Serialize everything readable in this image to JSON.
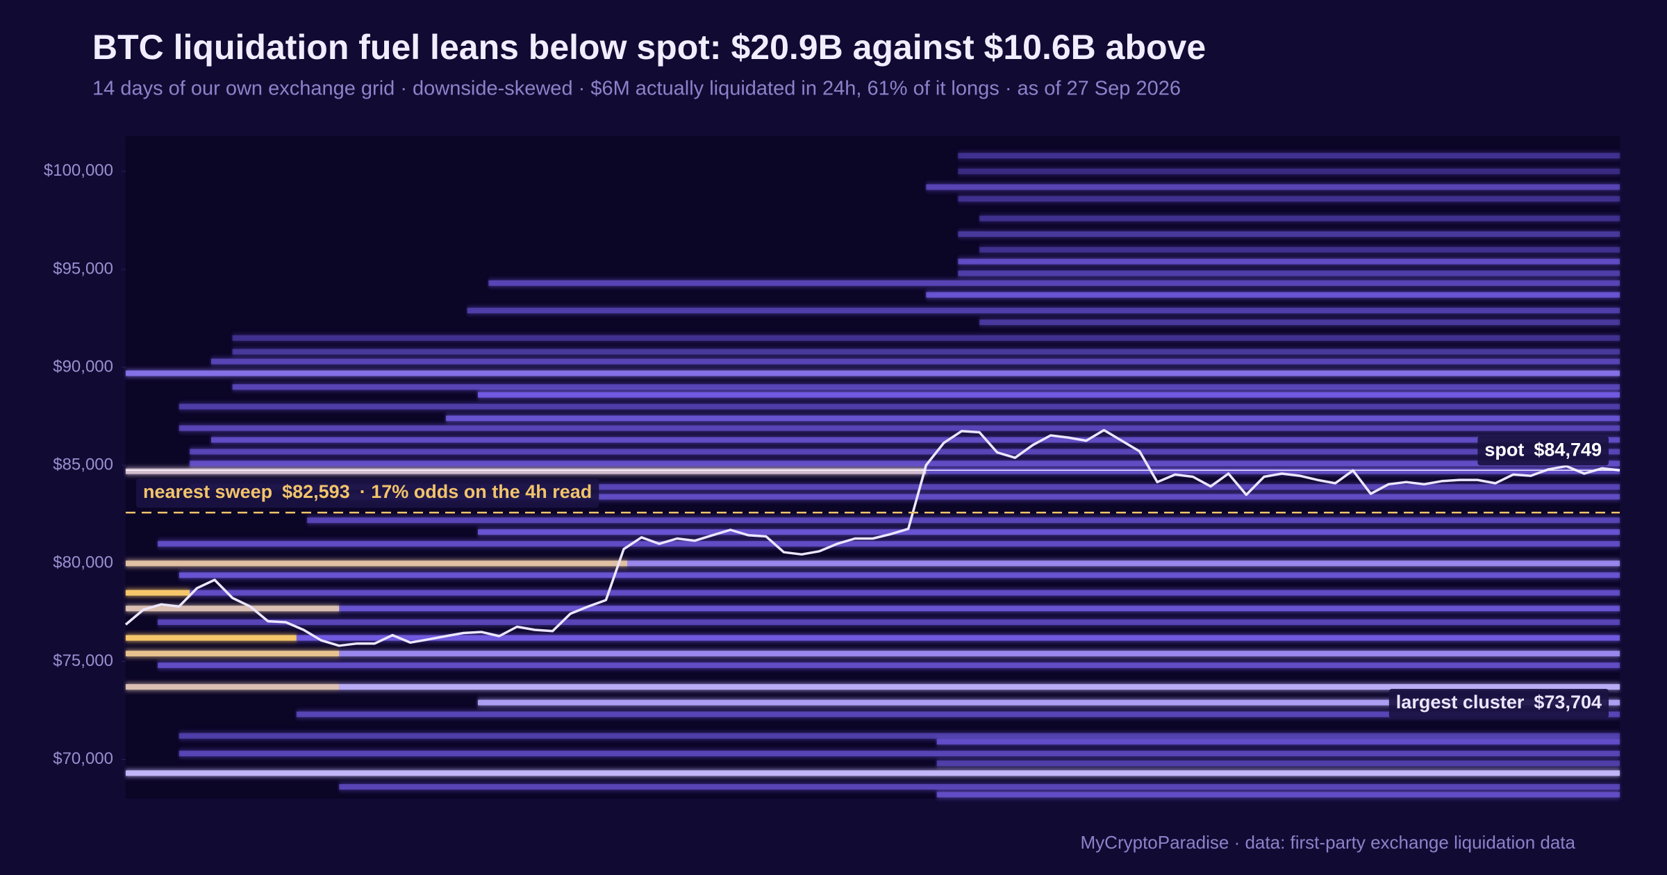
{
  "chart_data": {
    "type": "heatmap",
    "title": "BTC liquidation fuel leans below spot: $20.9B against $10.6B above",
    "subtitle": "14 days of our own exchange grid · downside-skewed · $6M actually liquidated in 24h, 61% of it longs · as of 27 Sep 2026",
    "footer": "MyCryptoParadise  ·  data: first-party exchange liquidation data",
    "xlim": [
      0,
      14
    ],
    "ylim": [
      68000,
      101800
    ],
    "yticks": [
      {
        "value": 70000,
        "label": "$70,000"
      },
      {
        "value": 75000,
        "label": "$75,000"
      },
      {
        "value": 80000,
        "label": "$80,000"
      },
      {
        "value": 85000,
        "label": "$85,000"
      },
      {
        "value": 90000,
        "label": "$90,000"
      },
      {
        "value": 95000,
        "label": "$95,000"
      },
      {
        "value": 100000,
        "label": "$100,000"
      }
    ],
    "price": {
      "color": "#ece6ff",
      "values": [
        76880,
        77640,
        77910,
        77800,
        78730,
        79160,
        78240,
        77800,
        77050,
        77000,
        76610,
        76070,
        75800,
        75910,
        75910,
        76340,
        75960,
        76120,
        76290,
        76450,
        76500,
        76290,
        76770,
        76610,
        76550,
        77430,
        77800,
        78130,
        80730,
        81330,
        81000,
        81270,
        81160,
        81440,
        81710,
        81440,
        81380,
        80570,
        80460,
        80620,
        81000,
        81270,
        81270,
        81490,
        81760,
        85010,
        86150,
        86750,
        86690,
        85660,
        85390,
        86040,
        86530,
        86420,
        86260,
        86800,
        86260,
        85720,
        84150,
        84530,
        84420,
        83930,
        84580,
        83500,
        84420,
        84580,
        84470,
        84260,
        84090,
        84740,
        83550,
        84040,
        84150,
        84040,
        84200,
        84260,
        84260,
        84090,
        84530,
        84470,
        84800,
        84960,
        84580,
        84850,
        84749
      ]
    },
    "bands": [
      {
        "price": 100800,
        "from": 7.8,
        "to": 14,
        "weight": 0.3
      },
      {
        "price": 100000,
        "from": 7.8,
        "to": 14,
        "weight": 0.25
      },
      {
        "price": 99200,
        "from": 7.5,
        "to": 14,
        "weight": 0.45
      },
      {
        "price": 98600,
        "from": 7.8,
        "to": 14,
        "weight": 0.3
      },
      {
        "price": 97600,
        "from": 8,
        "to": 14,
        "weight": 0.3
      },
      {
        "price": 96800,
        "from": 7.8,
        "to": 14,
        "weight": 0.35
      },
      {
        "price": 96000,
        "from": 8,
        "to": 14,
        "weight": 0.3
      },
      {
        "price": 95400,
        "from": 7.8,
        "to": 14,
        "weight": 0.5
      },
      {
        "price": 94800,
        "from": 7.8,
        "to": 14,
        "weight": 0.4
      },
      {
        "price": 94300,
        "from": 3.4,
        "to": 14,
        "weight": 0.45
      },
      {
        "price": 93700,
        "from": 7.5,
        "to": 14,
        "weight": 0.55
      },
      {
        "price": 92900,
        "from": 3.2,
        "to": 14,
        "weight": 0.4
      },
      {
        "price": 92300,
        "from": 8,
        "to": 14,
        "weight": 0.35
      },
      {
        "price": 91500,
        "from": 1,
        "to": 14,
        "weight": 0.3
      },
      {
        "price": 90800,
        "from": 1,
        "to": 14,
        "weight": 0.35
      },
      {
        "price": 90300,
        "from": 0.8,
        "to": 14,
        "weight": 0.45
      },
      {
        "price": 89700,
        "from": 0,
        "to": 14,
        "weight": 0.65
      },
      {
        "price": 89000,
        "from": 1,
        "to": 14,
        "weight": 0.45
      },
      {
        "price": 88600,
        "from": 3.3,
        "to": 14,
        "weight": 0.6
      },
      {
        "price": 88000,
        "from": 0.5,
        "to": 14,
        "weight": 0.4
      },
      {
        "price": 87400,
        "from": 3,
        "to": 14,
        "weight": 0.55
      },
      {
        "price": 86900,
        "from": 0.5,
        "to": 14,
        "weight": 0.45
      },
      {
        "price": 86300,
        "from": 0.8,
        "to": 14,
        "weight": 0.5
      },
      {
        "price": 85700,
        "from": 0.6,
        "to": 14,
        "weight": 0.45
      },
      {
        "price": 85100,
        "from": 0.6,
        "to": 14,
        "weight": 0.5
      },
      {
        "price": 84700,
        "from": 0,
        "to": 7.5,
        "weight": 0.86
      },
      {
        "price": 84700,
        "from": 7.5,
        "to": 14,
        "weight": 0.5
      },
      {
        "price": 83900,
        "from": 0.6,
        "to": 14,
        "weight": 0.45
      },
      {
        "price": 83400,
        "from": 2,
        "to": 14,
        "weight": 0.5
      },
      {
        "price": 82200,
        "from": 1.7,
        "to": 14,
        "weight": 0.45
      },
      {
        "price": 81600,
        "from": 3.3,
        "to": 14,
        "weight": 0.55
      },
      {
        "price": 81000,
        "from": 0.3,
        "to": 14,
        "weight": 0.5
      },
      {
        "price": 80000,
        "from": 0,
        "to": 4.7,
        "weight": 0.92
      },
      {
        "price": 80000,
        "from": 4.7,
        "to": 14,
        "weight": 0.7
      },
      {
        "price": 79400,
        "from": 0.5,
        "to": 14,
        "weight": 0.55
      },
      {
        "price": 78500,
        "from": 0,
        "to": 0.6,
        "weight": 1
      },
      {
        "price": 78500,
        "from": 0.6,
        "to": 14,
        "weight": 0.5
      },
      {
        "price": 77700,
        "from": 0,
        "to": 2,
        "weight": 0.9
      },
      {
        "price": 77700,
        "from": 2,
        "to": 14,
        "weight": 0.55
      },
      {
        "price": 77000,
        "from": 0.3,
        "to": 14,
        "weight": 0.45
      },
      {
        "price": 76200,
        "from": 0,
        "to": 1.6,
        "weight": 1
      },
      {
        "price": 76200,
        "from": 1.6,
        "to": 14,
        "weight": 0.6
      },
      {
        "price": 75400,
        "from": 0,
        "to": 2,
        "weight": 0.95
      },
      {
        "price": 75400,
        "from": 2,
        "to": 14,
        "weight": 0.7
      },
      {
        "price": 74800,
        "from": 0.3,
        "to": 14,
        "weight": 0.5
      },
      {
        "price": 73700,
        "from": 0,
        "to": 2,
        "weight": 0.9
      },
      {
        "price": 73700,
        "from": 2,
        "to": 14,
        "weight": 0.78
      },
      {
        "price": 72900,
        "from": 3.3,
        "to": 14,
        "weight": 0.75
      },
      {
        "price": 72300,
        "from": 1.6,
        "to": 14,
        "weight": 0.45
      },
      {
        "price": 71200,
        "from": 0.5,
        "to": 14,
        "weight": 0.4
      },
      {
        "price": 70900,
        "from": 7.6,
        "to": 14,
        "weight": 0.5
      },
      {
        "price": 70300,
        "from": 0.5,
        "to": 14,
        "weight": 0.45
      },
      {
        "price": 69800,
        "from": 7.6,
        "to": 14,
        "weight": 0.4
      },
      {
        "price": 69300,
        "from": 0,
        "to": 14,
        "weight": 0.8
      },
      {
        "price": 68600,
        "from": 2,
        "to": 14,
        "weight": 0.45
      },
      {
        "price": 68200,
        "from": 7.6,
        "to": 14,
        "weight": 0.5
      }
    ],
    "annotations": {
      "spot": {
        "label": "spot",
        "value": 84749,
        "value_label": "$84,749",
        "color": "#ffffff"
      },
      "sweep": {
        "label": "nearest sweep",
        "value": 82593,
        "value_label": "$82,593",
        "note": "·  17% odds on the 4h read",
        "color": "#f2c46b"
      },
      "cluster": {
        "label": "largest cluster",
        "value": 73704,
        "value_label": "$73,704",
        "color": "#ece6ff"
      }
    }
  }
}
